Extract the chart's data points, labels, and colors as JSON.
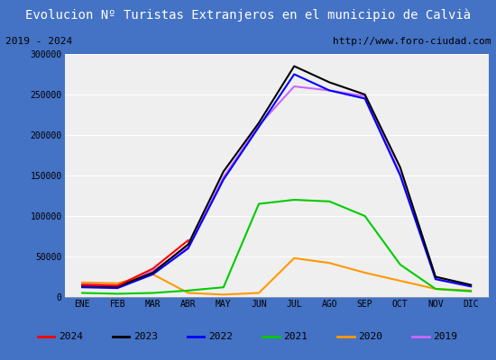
{
  "title": "Evolucion Nº Turistas Extranjeros en el municipio de Calvià",
  "subtitle_left": "2019 - 2024",
  "subtitle_right": "http://www.foro-ciudad.com",
  "months": [
    "ENE",
    "FEB",
    "MAR",
    "ABR",
    "MAY",
    "JUN",
    "JUL",
    "AGO",
    "SEP",
    "OCT",
    "NOV",
    "DIC"
  ],
  "ylim": [
    0,
    300000
  ],
  "yticks": [
    0,
    50000,
    100000,
    150000,
    200000,
    250000,
    300000
  ],
  "series": {
    "2024": {
      "color": "#ff0000",
      "data": [
        15000,
        14000,
        35000,
        70000,
        null,
        null,
        null,
        null,
        null,
        null,
        null,
        null
      ]
    },
    "2023": {
      "color": "#000000",
      "data": [
        14000,
        13000,
        30000,
        65000,
        155000,
        215000,
        285000,
        265000,
        250000,
        160000,
        25000,
        15000
      ]
    },
    "2022": {
      "color": "#0000ff",
      "data": [
        12000,
        11000,
        28000,
        60000,
        145000,
        210000,
        275000,
        255000,
        245000,
        150000,
        22000,
        13000
      ]
    },
    "2021": {
      "color": "#00cc00",
      "data": [
        5000,
        4000,
        5000,
        8000,
        12000,
        115000,
        120000,
        118000,
        100000,
        40000,
        10000,
        7000
      ]
    },
    "2020": {
      "color": "#ff9900",
      "data": [
        18000,
        17000,
        28000,
        5000,
        3000,
        5000,
        48000,
        42000,
        30000,
        20000,
        10000,
        8000
      ]
    },
    "2019": {
      "color": "#cc66ff",
      "data": [
        16000,
        15000,
        32000,
        62000,
        148000,
        212000,
        260000,
        255000,
        248000,
        152000,
        23000,
        14000
      ]
    }
  },
  "title_bg_color": "#4472c4",
  "title_text_color": "#ffffff",
  "plot_bg_color": "#efefef",
  "outer_bg_color": "#4472c4",
  "grid_color": "#ffffff",
  "subtitle_bg_color": "#ffffff",
  "legend_order": [
    "2024",
    "2023",
    "2022",
    "2021",
    "2020",
    "2019"
  ],
  "figsize": [
    5.5,
    4.0
  ],
  "dpi": 100
}
